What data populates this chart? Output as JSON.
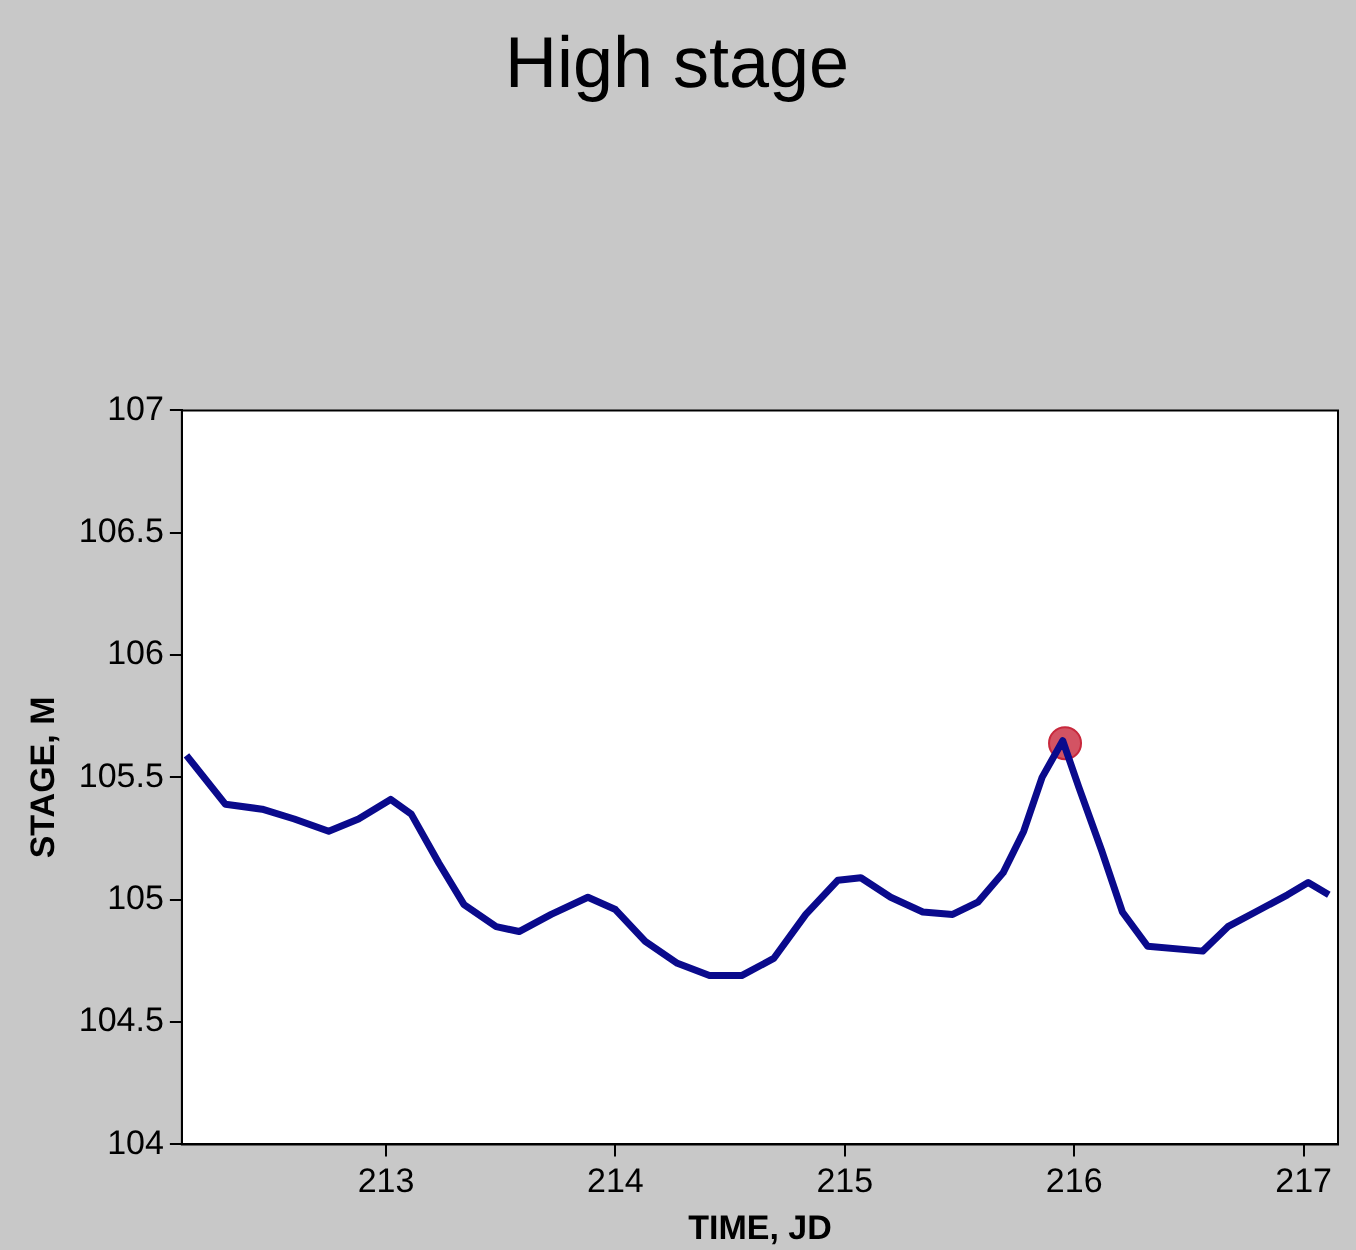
{
  "chart_data": {
    "type": "line",
    "title": "High stage",
    "xlabel": "TIME, JD",
    "ylabel": "STAGE, M",
    "xlim": [
      212.11,
      217.15
    ],
    "xticks": [
      213,
      214,
      215,
      216,
      217
    ],
    "ylim": [
      104,
      107
    ],
    "yticks": [
      104,
      104.5,
      105,
      105.5,
      106,
      106.5,
      107
    ],
    "grid": false,
    "legend": false,
    "series": [
      {
        "color": "#0a0a8c",
        "marker": "none",
        "x": [
          212.13,
          212.3,
          212.46,
          212.6,
          212.75,
          212.88,
          213.02,
          213.11,
          213.23,
          213.34,
          213.48,
          213.58,
          213.72,
          213.88,
          214.0,
          214.13,
          214.27,
          214.41,
          214.55,
          214.69,
          214.83,
          214.97,
          215.07,
          215.2,
          215.34,
          215.47,
          215.58,
          215.69,
          215.78,
          215.86,
          215.95,
          216.02,
          216.12,
          216.21,
          216.32,
          216.56,
          216.67,
          216.79,
          216.93,
          217.02,
          217.11
        ],
        "values": [
          105.59,
          105.39,
          105.37,
          105.33,
          105.28,
          105.33,
          105.41,
          105.35,
          105.15,
          104.98,
          104.89,
          104.87,
          104.94,
          105.01,
          104.96,
          104.83,
          104.74,
          104.69,
          104.69,
          104.76,
          104.94,
          105.08,
          105.09,
          105.01,
          104.95,
          104.94,
          104.99,
          105.11,
          105.28,
          105.5,
          105.65,
          105.46,
          105.2,
          104.95,
          104.81,
          104.79,
          104.89,
          104.95,
          105.02,
          105.07,
          105.02
        ]
      },
      {
        "type": "scatter",
        "color": "#c8283c",
        "marker": "circle",
        "x": [
          215.96
        ],
        "values": [
          105.64
        ]
      }
    ]
  }
}
